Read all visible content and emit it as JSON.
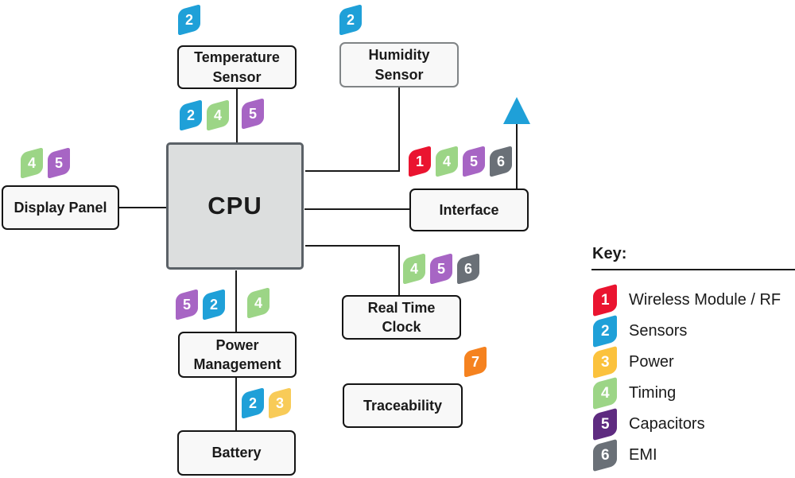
{
  "cpu": {
    "label": "CPU"
  },
  "nodes": {
    "temperature_sensor": {
      "label": "Temperature Sensor"
    },
    "humidity_sensor": {
      "label": "Humidity Sensor"
    },
    "display_panel": {
      "label": "Display Panel"
    },
    "interface": {
      "label": "Interface"
    },
    "real_time_clock": {
      "label": "Real Time Clock"
    },
    "power_management": {
      "label": "Power Management"
    },
    "battery": {
      "label": "Battery"
    },
    "traceability": {
      "label": "Traceability"
    }
  },
  "colors": {
    "wireless_rf": "#ea1430",
    "sensors": "#1fa0d8",
    "power": "#f8cb58",
    "timing": "#9cd586",
    "capacitors_diagram": "#a765c4",
    "capacitors_key": "#5e2b80",
    "emi": "#6a7077",
    "orange_7": "#f5821f",
    "arrow": "#1fa0d8"
  },
  "badges": {
    "temperature_top": [
      {
        "num": "2",
        "color": "#1fa0d8"
      }
    ],
    "humidity_top": [
      {
        "num": "2",
        "color": "#1fa0d8"
      }
    ],
    "cpu_top_left": [
      {
        "num": "2",
        "color": "#1fa0d8"
      },
      {
        "num": "4",
        "color": "#9cd586"
      }
    ],
    "cpu_top_right": [
      {
        "num": "5",
        "color": "#a765c4"
      }
    ],
    "display_top": [
      {
        "num": "4",
        "color": "#9cd586"
      },
      {
        "num": "5",
        "color": "#a765c4"
      }
    ],
    "interface_top": [
      {
        "num": "1",
        "color": "#ea1430"
      },
      {
        "num": "4",
        "color": "#9cd586"
      },
      {
        "num": "5",
        "color": "#a765c4"
      },
      {
        "num": "6",
        "color": "#6a7077"
      }
    ],
    "rtc_top": [
      {
        "num": "4",
        "color": "#9cd586"
      },
      {
        "num": "5",
        "color": "#a765c4"
      },
      {
        "num": "6",
        "color": "#6a7077"
      }
    ],
    "power_left": [
      {
        "num": "5",
        "color": "#a765c4"
      },
      {
        "num": "2",
        "color": "#1fa0d8"
      }
    ],
    "power_right": [
      {
        "num": "4",
        "color": "#9cd586"
      }
    ],
    "battery_top": [
      {
        "num": "2",
        "color": "#1fa0d8"
      },
      {
        "num": "3",
        "color": "#f8cb58"
      }
    ],
    "traceability_corner": [
      {
        "num": "7",
        "color": "#f5821f"
      }
    ]
  },
  "legend": {
    "title": "Key:",
    "items": [
      {
        "num": "1",
        "label": "Wireless Module / RF",
        "color": "#ea1430"
      },
      {
        "num": "2",
        "label": "Sensors",
        "color": "#1fa0d8"
      },
      {
        "num": "3",
        "label": "Power",
        "color": "#fbc23d"
      },
      {
        "num": "4",
        "label": "Timing",
        "color": "#9cd586"
      },
      {
        "num": "5",
        "label": "Capacitors",
        "color": "#5e2b80"
      },
      {
        "num": "6",
        "label": "EMI",
        "color": "#6a7077"
      }
    ]
  }
}
